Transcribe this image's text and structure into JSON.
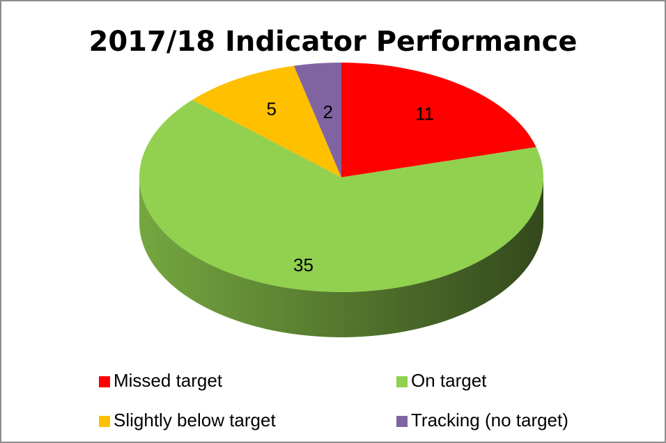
{
  "chart_data": {
    "type": "pie3d",
    "title": "2017/18 Indicator Performance",
    "categories": [
      "Missed target",
      "On target",
      "Slightly below target",
      "Tracking (no target)"
    ],
    "values": [
      11,
      35,
      5,
      2
    ],
    "colors": [
      "#ff0000",
      "#92d050",
      "#ffc000",
      "#8064a2"
    ],
    "legend": "bottom"
  }
}
